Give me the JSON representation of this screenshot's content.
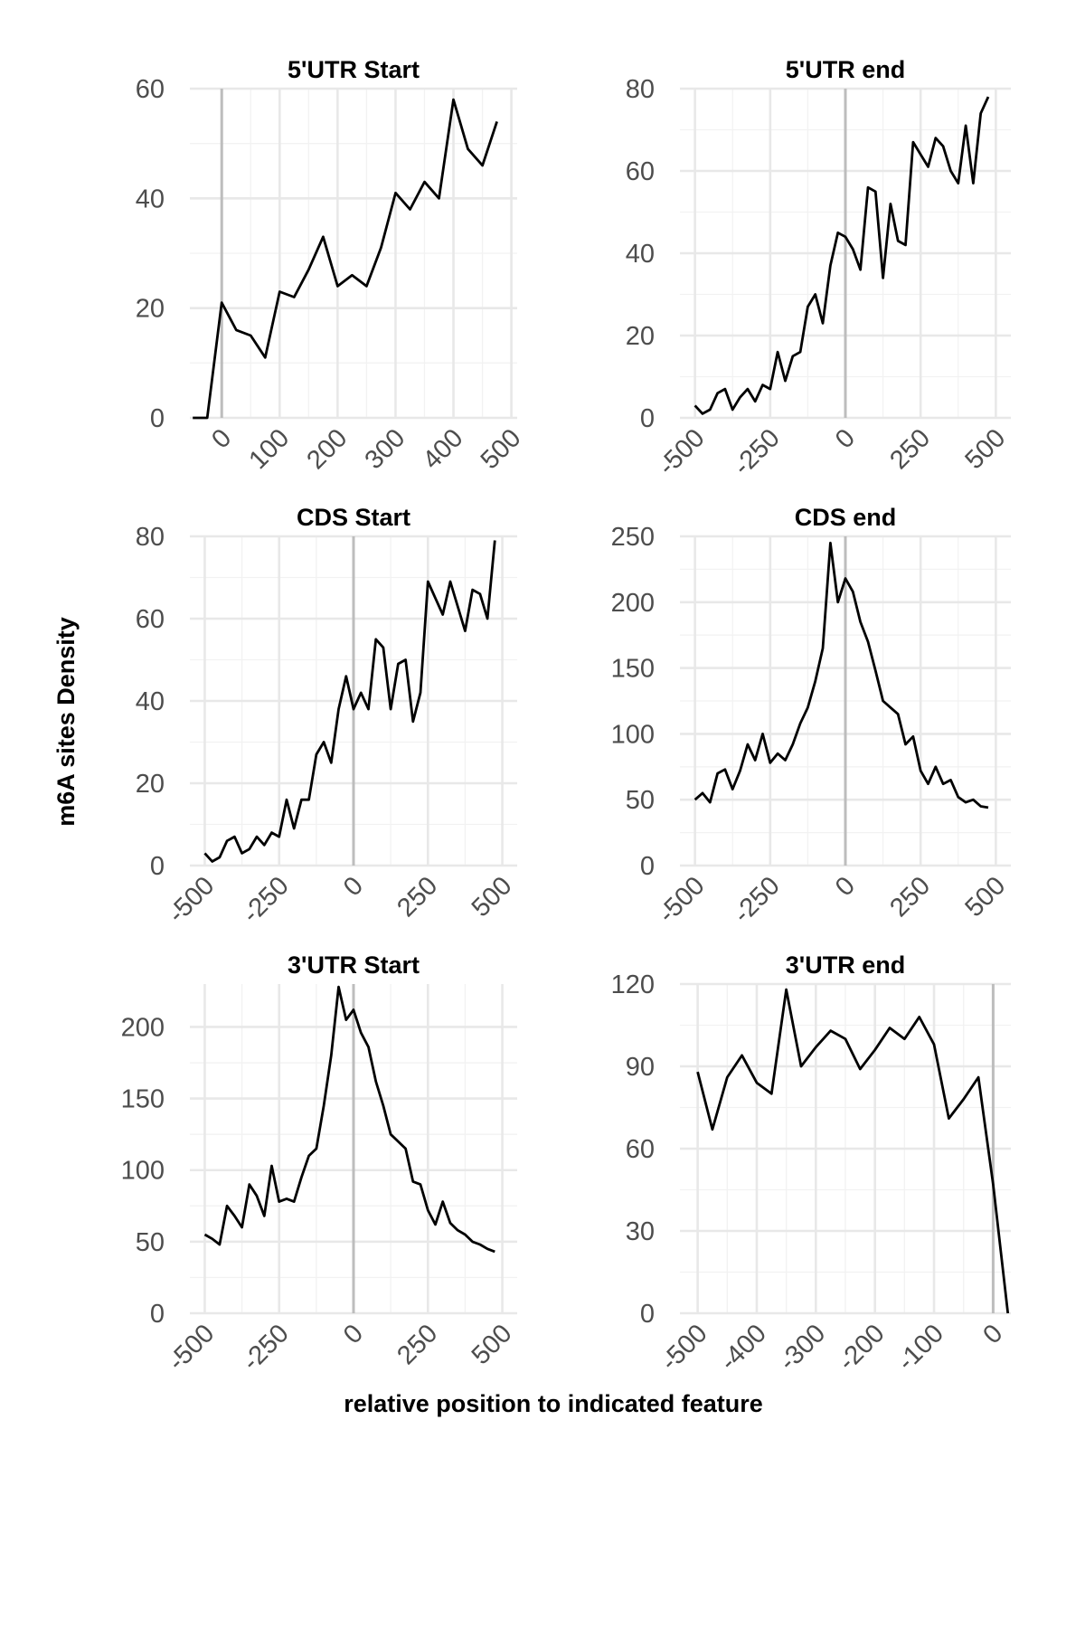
{
  "figure": {
    "ylabel": "m6A sites Density",
    "xlabel": "relative position to indicated feature"
  },
  "chart_data": [
    {
      "type": "line",
      "title": "5'UTR Start",
      "xlim": [
        -55,
        510
      ],
      "ylim": [
        0,
        60
      ],
      "x_ticks": [
        0,
        100,
        200,
        300,
        400,
        500
      ],
      "y_ticks": [
        0,
        20,
        40,
        60
      ],
      "vline": 0,
      "grid": true,
      "x": [
        -50,
        -25,
        0,
        25,
        50,
        75,
        100,
        125,
        150,
        175,
        200,
        225,
        250,
        275,
        300,
        325,
        350,
        375,
        400,
        425,
        450,
        475
      ],
      "y": [
        0,
        0,
        21,
        16,
        15,
        11,
        23,
        22,
        27,
        33,
        24,
        26,
        24,
        31,
        41,
        38,
        43,
        40,
        58,
        49,
        46,
        54
      ]
    },
    {
      "type": "line",
      "title": "5'UTR end",
      "xlim": [
        -550,
        550
      ],
      "ylim": [
        0,
        80
      ],
      "x_ticks": [
        -500,
        -250,
        0,
        250,
        500
      ],
      "y_ticks": [
        0,
        20,
        40,
        60,
        80
      ],
      "vline": 0,
      "grid": true,
      "x": [
        -500,
        -475,
        -450,
        -425,
        -400,
        -375,
        -350,
        -325,
        -300,
        -275,
        -250,
        -225,
        -200,
        -175,
        -150,
        -125,
        -100,
        -75,
        -50,
        -25,
        0,
        25,
        50,
        75,
        100,
        125,
        150,
        175,
        200,
        225,
        250,
        275,
        300,
        325,
        350,
        375,
        400,
        425,
        450,
        475
      ],
      "y": [
        3,
        1,
        2,
        6,
        7,
        2,
        5,
        7,
        4,
        8,
        7,
        16,
        9,
        15,
        16,
        27,
        30,
        23,
        37,
        45,
        44,
        41,
        36,
        56,
        55,
        34,
        52,
        43,
        42,
        67,
        64,
        61,
        68,
        66,
        60,
        57,
        71,
        57,
        74,
        78
      ]
    },
    {
      "type": "line",
      "title": "CDS Start",
      "xlim": [
        -550,
        550
      ],
      "ylim": [
        0,
        80
      ],
      "x_ticks": [
        -500,
        -250,
        0,
        250,
        500
      ],
      "y_ticks": [
        0,
        20,
        40,
        60,
        80
      ],
      "vline": 0,
      "grid": true,
      "x": [
        -500,
        -475,
        -450,
        -425,
        -400,
        -375,
        -350,
        -325,
        -300,
        -275,
        -250,
        -225,
        -200,
        -175,
        -150,
        -125,
        -100,
        -75,
        -50,
        -25,
        0,
        25,
        50,
        75,
        100,
        125,
        150,
        175,
        200,
        225,
        250,
        275,
        300,
        325,
        350,
        375,
        400,
        425,
        450,
        475
      ],
      "y": [
        3,
        1,
        2,
        6,
        7,
        3,
        4,
        7,
        5,
        8,
        7,
        16,
        9,
        16,
        16,
        27,
        30,
        25,
        38,
        46,
        38,
        42,
        38,
        55,
        53,
        38,
        49,
        50,
        35,
        42,
        69,
        65,
        61,
        69,
        63,
        57,
        67,
        66,
        60,
        79
      ]
    },
    {
      "type": "line",
      "title": "CDS end",
      "xlim": [
        -550,
        550
      ],
      "ylim": [
        0,
        250
      ],
      "x_ticks": [
        -500,
        -250,
        0,
        250,
        500
      ],
      "y_ticks": [
        0,
        50,
        100,
        150,
        200,
        250
      ],
      "vline": 0,
      "grid": true,
      "x": [
        -500,
        -475,
        -450,
        -425,
        -400,
        -375,
        -350,
        -325,
        -300,
        -275,
        -250,
        -225,
        -200,
        -175,
        -150,
        -125,
        -100,
        -75,
        -50,
        -25,
        0,
        25,
        50,
        75,
        100,
        125,
        150,
        175,
        200,
        225,
        250,
        275,
        300,
        325,
        350,
        375,
        400,
        425,
        450,
        475
      ],
      "y": [
        50,
        55,
        48,
        70,
        73,
        58,
        72,
        92,
        80,
        100,
        78,
        85,
        80,
        92,
        108,
        120,
        140,
        165,
        245,
        200,
        218,
        208,
        185,
        170,
        148,
        125,
        120,
        115,
        92,
        98,
        72,
        62,
        75,
        62,
        65,
        52,
        48,
        50,
        45,
        44
      ]
    },
    {
      "type": "line",
      "title": "3'UTR Start",
      "xlim": [
        -550,
        550
      ],
      "ylim": [
        0,
        230
      ],
      "x_ticks": [
        -500,
        -250,
        0,
        250,
        500
      ],
      "y_ticks": [
        0,
        50,
        100,
        150,
        200
      ],
      "vline": 0,
      "grid": true,
      "x": [
        -500,
        -475,
        -450,
        -425,
        -400,
        -375,
        -350,
        -325,
        -300,
        -275,
        -250,
        -225,
        -200,
        -175,
        -150,
        -125,
        -100,
        -75,
        -50,
        -25,
        0,
        25,
        50,
        75,
        100,
        125,
        150,
        175,
        200,
        225,
        250,
        275,
        300,
        325,
        350,
        375,
        400,
        425,
        450,
        475
      ],
      "y": [
        55,
        52,
        48,
        75,
        68,
        60,
        90,
        82,
        68,
        103,
        78,
        80,
        78,
        95,
        110,
        115,
        145,
        180,
        228,
        205,
        212,
        196,
        186,
        162,
        145,
        125,
        120,
        115,
        92,
        90,
        72,
        62,
        78,
        63,
        58,
        55,
        50,
        48,
        45,
        43
      ]
    },
    {
      "type": "line",
      "title": "3'UTR end",
      "xlim": [
        -530,
        30
      ],
      "ylim": [
        0,
        120
      ],
      "x_ticks": [
        -500,
        -400,
        -300,
        -200,
        -100,
        0
      ],
      "y_ticks": [
        0,
        30,
        60,
        90,
        120
      ],
      "vline": 0,
      "grid": true,
      "x": [
        -500,
        -475,
        -450,
        -425,
        -400,
        -375,
        -350,
        -325,
        -300,
        -275,
        -250,
        -225,
        -200,
        -175,
        -150,
        -125,
        -100,
        -75,
        -50,
        -25,
        0,
        25
      ],
      "y": [
        88,
        67,
        86,
        94,
        84,
        80,
        118,
        90,
        97,
        103,
        100,
        89,
        96,
        104,
        100,
        108,
        98,
        71,
        78,
        86,
        47,
        0
      ]
    }
  ]
}
